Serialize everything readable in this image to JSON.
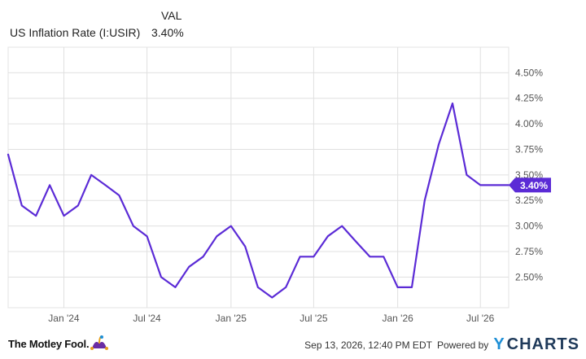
{
  "legend": {
    "header": "VAL",
    "series_name": "US Inflation Rate (I:USIR)",
    "series_value": "3.40%"
  },
  "footer": {
    "brand": "The Motley Fool.",
    "timestamp": "Sep 13, 2026, 12:40 PM EDT",
    "powered_by": "Powered by",
    "ycharts_y": "Y",
    "ycharts_rest": "CHARTS"
  },
  "colors": {
    "line": "#5b2bd6",
    "grid": "#e0e0e0",
    "badge": "#5b2bd6"
  },
  "chart_data": {
    "type": "line",
    "title": "",
    "xlabel": "",
    "ylabel": "",
    "ylim": [
      2.2,
      4.75
    ],
    "xlim": [
      "2023-09-01",
      "2026-09-01"
    ],
    "x_ticks": [
      {
        "date": "2024-01-01",
        "label": "Jan '24"
      },
      {
        "date": "2024-07-01",
        "label": "Jul '24"
      },
      {
        "date": "2025-01-01",
        "label": "Jan '25"
      },
      {
        "date": "2025-07-01",
        "label": "Jul '25"
      },
      {
        "date": "2026-01-01",
        "label": "Jan '26"
      },
      {
        "date": "2026-07-01",
        "label": "Jul '26"
      }
    ],
    "y_ticks": [
      {
        "value": 2.5,
        "label": "2.50%"
      },
      {
        "value": 2.75,
        "label": "2.75%"
      },
      {
        "value": 3.0,
        "label": "3.00%"
      },
      {
        "value": 3.25,
        "label": "3.25%"
      },
      {
        "value": 3.5,
        "label": "3.50%"
      },
      {
        "value": 3.75,
        "label": "3.75%"
      },
      {
        "value": 4.0,
        "label": "4.00%"
      },
      {
        "value": 4.25,
        "label": "4.25%"
      },
      {
        "value": 4.5,
        "label": "4.50%"
      }
    ],
    "series": [
      {
        "name": "US Inflation Rate (I:USIR)",
        "x": [
          "2023-09",
          "2023-10",
          "2023-11",
          "2023-12",
          "2024-01",
          "2024-02",
          "2024-03",
          "2024-04",
          "2024-05",
          "2024-06",
          "2024-07",
          "2024-08",
          "2024-09",
          "2024-10",
          "2024-11",
          "2024-12",
          "2025-01",
          "2025-02",
          "2025-03",
          "2025-04",
          "2025-05",
          "2025-06",
          "2025-07",
          "2025-08",
          "2025-09",
          "2025-10",
          "2025-11",
          "2025-12",
          "2026-01",
          "2026-02",
          "2026-03",
          "2026-04",
          "2026-05",
          "2026-06",
          "2026-07",
          "2026-08",
          "2026-09"
        ],
        "values": [
          3.7,
          3.2,
          3.1,
          3.4,
          3.1,
          3.2,
          3.5,
          3.4,
          3.3,
          3.0,
          2.9,
          2.5,
          2.4,
          2.6,
          2.7,
          2.9,
          3.0,
          2.8,
          2.4,
          2.3,
          2.4,
          2.7,
          2.7,
          2.9,
          3.0,
          2.85,
          2.7,
          2.7,
          2.4,
          2.4,
          3.25,
          3.8,
          4.2,
          3.5,
          3.4,
          3.4,
          3.4
        ]
      }
    ],
    "last_value_label": "3.40%",
    "grid": true,
    "legend_position": "top-left"
  }
}
